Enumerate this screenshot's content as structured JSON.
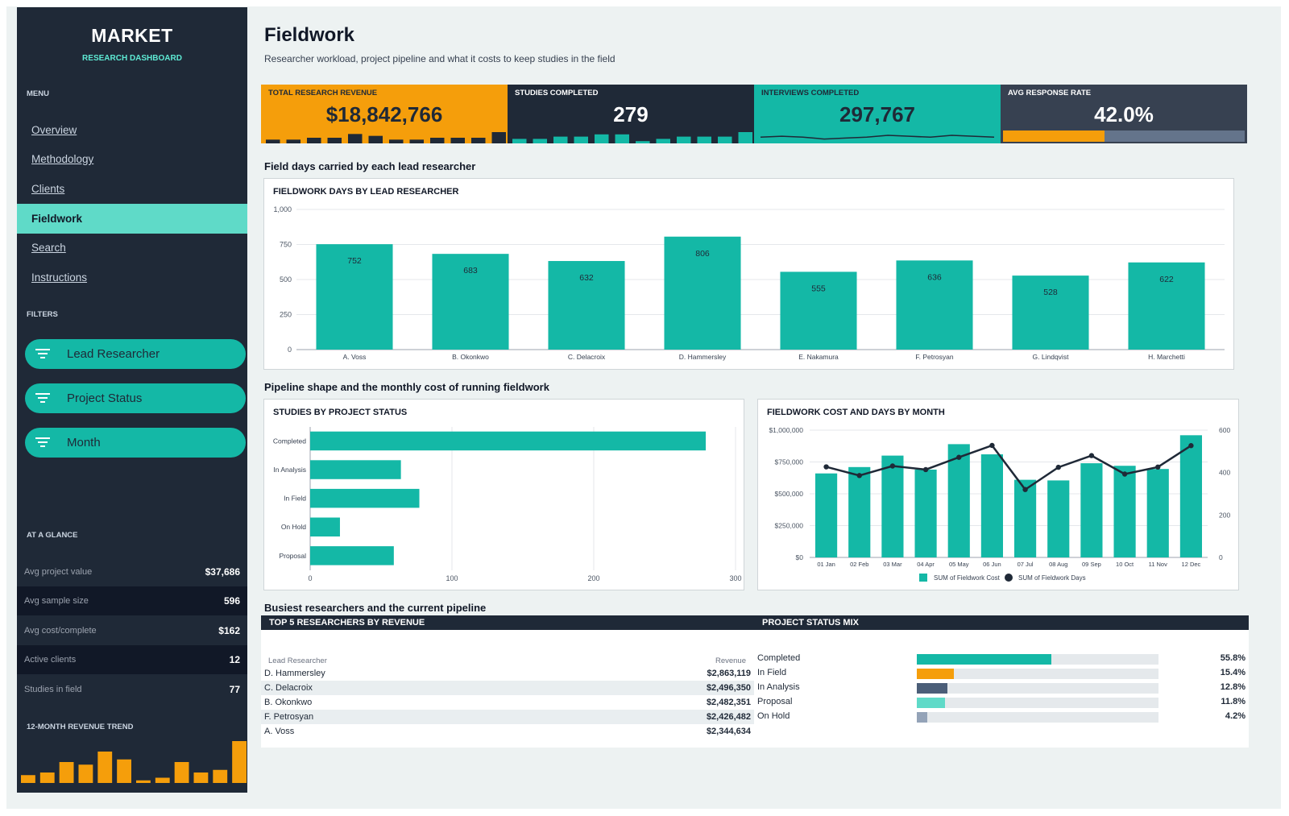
{
  "brand": {
    "title": "MARKET",
    "subtitle": "RESEARCH DASHBOARD"
  },
  "sidebar": {
    "menu_label": "MENU",
    "items": [
      {
        "label": "Overview"
      },
      {
        "label": "Methodology"
      },
      {
        "label": "Clients"
      },
      {
        "label": "Fieldwork"
      },
      {
        "label": "Search"
      },
      {
        "label": "Instructions"
      }
    ],
    "active_item": "Fieldwork",
    "filters_label": "FILTERS",
    "filters": [
      {
        "label": "Lead Researcher"
      },
      {
        "label": "Project Status"
      },
      {
        "label": "Month"
      }
    ],
    "glance_label": "AT A GLANCE",
    "glance": [
      {
        "label": "Avg project value",
        "value": "$37,686"
      },
      {
        "label": "Avg sample size",
        "value": "596"
      },
      {
        "label": "Avg cost/complete",
        "value": "$162"
      },
      {
        "label": "Active clients",
        "value": "12"
      },
      {
        "label": "Studies in field",
        "value": "77"
      }
    ],
    "trend_label": "12-MONTH REVENUE TREND"
  },
  "page": {
    "title": "Fieldwork",
    "subtitle": "Researcher workload, project pipeline and what it costs to keep studies in the field"
  },
  "kpis": [
    {
      "label": "TOTAL RESEARCH REVENUE",
      "value": "$18,842,766",
      "color": "#f59e0b"
    },
    {
      "label": "STUDIES COMPLETED",
      "value": "279",
      "color": "#1f2937"
    },
    {
      "label": "INTERVIEWS COMPLETED",
      "value": "297,767",
      "color": "#14b8a6"
    },
    {
      "label": "AVG RESPONSE RATE",
      "value": "42.0%",
      "color": "#374151",
      "progress": 0.42
    }
  ],
  "sections": {
    "s1": "Field days carried by each lead researcher",
    "s2": "Pipeline shape and the monthly cost of running fieldwork",
    "s3": "Busiest researchers and the current pipeline"
  },
  "chart_data": [
    {
      "type": "bar",
      "title": "FIELDWORK DAYS BY LEAD RESEARCHER",
      "categories": [
        "A. Voss",
        "B. Okonkwo",
        "C. Delacroix",
        "D. Hammersley",
        "E. Nakamura",
        "F. Petrosyan",
        "G. Lindqvist",
        "H. Marchetti"
      ],
      "values": [
        752,
        683,
        632,
        806,
        555,
        636,
        528,
        622
      ],
      "ylim": [
        0,
        1000
      ],
      "yticks": [
        "0",
        "250",
        "500",
        "750",
        "1,000"
      ],
      "color": "#14b8a6"
    },
    {
      "type": "bar",
      "orientation": "horizontal",
      "title": "STUDIES BY PROJECT STATUS",
      "categories": [
        "Completed",
        "In Analysis",
        "In Field",
        "On Hold",
        "Proposal"
      ],
      "values": [
        279,
        64,
        77,
        21,
        59
      ],
      "xlim": [
        0,
        300
      ],
      "xticks": [
        "0",
        "100",
        "200",
        "300"
      ],
      "color": "#14b8a6"
    },
    {
      "type": "bar",
      "title": "FIELDWORK COST AND DAYS BY MONTH",
      "categories": [
        "01 Jan",
        "02 Feb",
        "03 Mar",
        "04 Apr",
        "05 May",
        "06 Jun",
        "07 Jul",
        "08 Aug",
        "09 Sep",
        "10 Oct",
        "11 Nov",
        "12 Dec"
      ],
      "series": [
        {
          "name": "SUM of Fieldwork Cost",
          "type": "bar",
          "values": [
            660000,
            710000,
            800000,
            690000,
            890000,
            810000,
            610000,
            605000,
            740000,
            720000,
            695000,
            960000
          ],
          "color": "#14b8a6"
        },
        {
          "name": "SUM of Fieldwork Days",
          "type": "line",
          "values": [
            427,
            386,
            431,
            414,
            472,
            528,
            320,
            425,
            480,
            393,
            426,
            527
          ],
          "color": "#1f2937"
        }
      ],
      "ylim": [
        0,
        1000000
      ],
      "yticks": [
        "$0",
        "$250,000",
        "$500,000",
        "$750,000",
        "$1,000,000"
      ],
      "y2lim": [
        0,
        600
      ],
      "y2ticks": [
        "0",
        "200",
        "400",
        "600"
      ]
    }
  ],
  "kpi_sparks": {
    "revenue": [
      2,
      2,
      3,
      3,
      5,
      4,
      2,
      2,
      3,
      3,
      3,
      6
    ],
    "studies": [
      2,
      2,
      3,
      3,
      4,
      4,
      1,
      2,
      3,
      3,
      3,
      5
    ],
    "interviews": [
      5,
      6,
      5,
      3,
      4,
      5,
      7,
      6,
      5,
      7,
      6,
      5
    ]
  },
  "revenue_trend": [
    3,
    4,
    8,
    7,
    12,
    9,
    1,
    2,
    8,
    4,
    5,
    16
  ],
  "top5": {
    "title": "TOP 5 RESEARCHERS BY REVENUE",
    "col1": "Lead Researcher",
    "col2": "Revenue",
    "rows": [
      {
        "name": "D. Hammersley",
        "revenue": "$2,863,119"
      },
      {
        "name": "C. Delacroix",
        "revenue": "$2,496,350"
      },
      {
        "name": "B. Okonkwo",
        "revenue": "$2,482,351"
      },
      {
        "name": "F. Petrosyan",
        "revenue": "$2,426,482"
      },
      {
        "name": "A. Voss",
        "revenue": "$2,344,634"
      }
    ]
  },
  "mix": {
    "title": "PROJECT STATUS MIX",
    "rows": [
      {
        "label": "Completed",
        "pct": "55.8%",
        "value": 0.558,
        "color": "#14b8a6"
      },
      {
        "label": "In Field",
        "pct": "15.4%",
        "value": 0.154,
        "color": "#f59e0b"
      },
      {
        "label": "In Analysis",
        "pct": "12.8%",
        "value": 0.128,
        "color": "#4b5e78"
      },
      {
        "label": "Proposal",
        "pct": "11.8%",
        "value": 0.118,
        "color": "#5fdac8"
      },
      {
        "label": "On Hold",
        "pct": "4.2%",
        "value": 0.042,
        "color": "#94a3b8"
      }
    ]
  }
}
